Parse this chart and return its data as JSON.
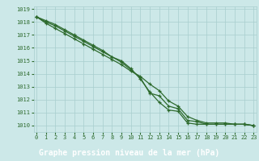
{
  "title": "Graphe pression niveau de la mer (hPa)",
  "hours": [
    0,
    1,
    2,
    3,
    4,
    5,
    6,
    7,
    8,
    9,
    10,
    11,
    12,
    13,
    14,
    15,
    16,
    17,
    18,
    19,
    20,
    21,
    22,
    23
  ],
  "series": [
    [
      1018.4,
      1018.1,
      1017.8,
      1017.4,
      1017.0,
      1016.6,
      1016.2,
      1015.8,
      1015.3,
      1015.0,
      1014.4,
      1013.6,
      1012.6,
      1011.8,
      1011.2,
      1011.1,
      1010.2,
      1010.1,
      1010.1,
      1010.1,
      1010.1,
      1010.1,
      1010.1,
      1010.0
    ],
    [
      1018.4,
      1017.9,
      1017.5,
      1017.1,
      1016.7,
      1016.3,
      1015.9,
      1015.5,
      1015.1,
      1014.7,
      1014.2,
      1013.8,
      1013.2,
      1012.7,
      1011.9,
      1011.5,
      1010.7,
      1010.4,
      1010.2,
      1010.2,
      1010.2,
      1010.1,
      1010.1,
      1010.0
    ],
    [
      1018.4,
      1018.0,
      1017.7,
      1017.3,
      1016.9,
      1016.5,
      1016.1,
      1015.7,
      1015.3,
      1014.9,
      1014.3,
      1013.7,
      1012.5,
      1012.3,
      1011.5,
      1011.3,
      1010.4,
      1010.3,
      1010.1,
      1010.1,
      1010.1,
      1010.1,
      1010.1,
      1010.0
    ]
  ],
  "ylim": [
    1009.5,
    1019.2
  ],
  "yticks": [
    1010,
    1011,
    1012,
    1013,
    1014,
    1015,
    1016,
    1017,
    1018,
    1019
  ],
  "line_color": "#2d6a2d",
  "bg_color": "#cce8e8",
  "grid_color": "#a8cece",
  "title_bg": "#2d6a2d",
  "title_fg": "#ffffff"
}
